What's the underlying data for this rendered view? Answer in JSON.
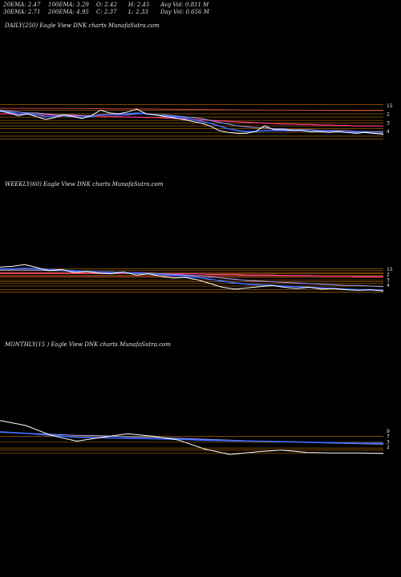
{
  "stats": [
    {
      "label": "20EMA:",
      "value": "2.47"
    },
    {
      "label": "100EMA:",
      "value": "3.29"
    },
    {
      "label": "O:",
      "value": "2.42"
    },
    {
      "label": "H:",
      "value": "2.45"
    },
    {
      "label": "Avg Vol:",
      "value": "0.811",
      "unit": "M"
    },
    {
      "label": "30EMA:",
      "value": "2.71"
    },
    {
      "label": "200EMA:",
      "value": "4.95"
    },
    {
      "label": "C:",
      "value": "2.37"
    },
    {
      "label": "L:",
      "value": "2.33"
    },
    {
      "label": "Day Vol:",
      "value": "0.656",
      "unit": "M"
    }
  ],
  "panels": {
    "daily": {
      "label": "DAILY(250) Eagle   View  DNK charts MunafaSutra.com"
    },
    "weekly": {
      "label": "WEEKLY(60) Eagle   View  DNK charts MunafaSutra.com"
    },
    "monthly": {
      "label": "MONTHLY(15                   ) Eagle   View  DNK charts MunafaSutra.com"
    }
  },
  "colors": {
    "background": "#000000",
    "price": "#ffffff",
    "ema_short": "#3b6cff",
    "ema_mid": "#a0a0ff",
    "ema_long": "#ff3b8a",
    "ema_longest": "#c04040",
    "levels": "#c07000"
  },
  "chart_data": [
    {
      "type": "line",
      "name": "daily",
      "ylim": [
        1.5,
        6.5
      ],
      "y_ticks": [
        "15",
        "2",
        "3",
        "4"
      ],
      "levels": [
        5.6,
        5.0,
        4.6,
        4.25,
        3.9,
        3.6,
        3.3,
        3.0,
        2.6,
        2.2,
        1.9
      ],
      "series": [
        {
          "role": "price",
          "values": [
            4.9,
            4.7,
            4.4,
            4.6,
            4.3,
            4.0,
            4.2,
            4.5,
            4.3,
            4.1,
            4.4,
            5.0,
            4.7,
            4.6,
            4.8,
            5.1,
            4.6,
            4.5,
            4.3,
            4.2,
            4.0,
            3.8,
            3.6,
            3.3,
            2.8,
            2.6,
            2.5,
            2.5,
            2.7,
            3.3,
            2.9,
            2.9,
            2.8,
            2.8,
            2.7,
            2.7,
            2.6,
            2.7,
            2.6,
            2.5,
            2.6,
            2.5,
            2.4
          ]
        },
        {
          "role": "ema_short",
          "values": [
            4.9,
            4.8,
            4.6,
            4.6,
            4.5,
            4.3,
            4.3,
            4.4,
            4.3,
            4.2,
            4.3,
            4.5,
            4.5,
            4.5,
            4.6,
            4.7,
            4.6,
            4.5,
            4.4,
            4.3,
            4.2,
            4.0,
            3.8,
            3.6,
            3.3,
            3.0,
            2.8,
            2.7,
            2.7,
            2.8,
            2.8,
            2.8,
            2.8,
            2.8,
            2.7,
            2.7,
            2.7,
            2.7,
            2.6,
            2.6,
            2.6,
            2.5,
            2.5
          ]
        },
        {
          "role": "ema_mid",
          "values": [
            5.0,
            4.9,
            4.8,
            4.7,
            4.7,
            4.6,
            4.5,
            4.5,
            4.5,
            4.4,
            4.4,
            4.5,
            4.5,
            4.5,
            4.5,
            4.6,
            4.6,
            4.5,
            4.5,
            4.4,
            4.3,
            4.2,
            4.1,
            3.9,
            3.7,
            3.5,
            3.3,
            3.2,
            3.1,
            3.1,
            3.0,
            3.0,
            2.9,
            2.9,
            2.9,
            2.8,
            2.8,
            2.8,
            2.8,
            2.7,
            2.7,
            2.7,
            2.7
          ]
        },
        {
          "role": "ema_long",
          "values": [
            4.6,
            4.6,
            4.55,
            4.55,
            4.5,
            4.5,
            4.45,
            4.45,
            4.4,
            4.4,
            4.35,
            4.35,
            4.3,
            4.3,
            4.25,
            4.25,
            4.2,
            4.2,
            4.15,
            4.1,
            4.05,
            4.0,
            3.95,
            3.9,
            3.85,
            3.8,
            3.75,
            3.7,
            3.65,
            3.6,
            3.55,
            3.5,
            3.5,
            3.45,
            3.45,
            3.4,
            3.4,
            3.35,
            3.35,
            3.3,
            3.3,
            3.3,
            3.29
          ]
        },
        {
          "role": "ema_longest",
          "values": [
            5.2,
            5.2,
            5.2,
            5.2,
            5.19,
            5.19,
            5.18,
            5.18,
            5.17,
            5.17,
            5.16,
            5.16,
            5.15,
            5.15,
            5.14,
            5.14,
            5.13,
            5.12,
            5.11,
            5.1,
            5.09,
            5.08,
            5.07,
            5.06,
            5.05,
            5.04,
            5.03,
            5.02,
            5.01,
            5.0,
            4.99,
            4.99,
            4.98,
            4.98,
            4.97,
            4.97,
            4.96,
            4.96,
            4.96,
            4.95,
            4.95,
            4.95,
            4.95
          ]
        }
      ]
    },
    {
      "type": "line",
      "name": "weekly",
      "ylim": [
        1.5,
        7.5
      ],
      "y_ticks": [
        "15",
        "2",
        "3",
        "4"
      ],
      "levels": [
        6.0,
        5.7,
        5.4,
        5.2,
        4.9,
        4.6,
        4.2,
        3.9,
        3.6,
        3.2,
        2.6,
        2.2
      ],
      "series": [
        {
          "role": "price",
          "values": [
            6.3,
            6.4,
            6.7,
            6.2,
            5.7,
            5.9,
            5.4,
            5.6,
            5.3,
            5.2,
            5.5,
            5.0,
            5.2,
            4.8,
            4.5,
            4.6,
            4.2,
            3.6,
            3.0,
            2.7,
            2.9,
            3.1,
            3.3,
            3.0,
            2.8,
            3.0,
            2.7,
            2.8,
            2.6,
            2.5,
            2.6,
            2.4
          ]
        },
        {
          "role": "ema_short",
          "values": [
            6.0,
            6.0,
            6.1,
            6.0,
            5.9,
            5.8,
            5.7,
            5.6,
            5.5,
            5.4,
            5.4,
            5.3,
            5.2,
            5.1,
            4.9,
            4.8,
            4.6,
            4.3,
            4.0,
            3.7,
            3.5,
            3.4,
            3.3,
            3.2,
            3.1,
            3.0,
            2.9,
            2.8,
            2.7,
            2.6,
            2.6,
            2.5
          ]
        },
        {
          "role": "ema_mid",
          "values": [
            5.8,
            5.8,
            5.8,
            5.8,
            5.7,
            5.7,
            5.6,
            5.6,
            5.5,
            5.5,
            5.4,
            5.4,
            5.3,
            5.2,
            5.1,
            5.0,
            4.9,
            4.7,
            4.5,
            4.3,
            4.1,
            4.0,
            3.9,
            3.8,
            3.7,
            3.6,
            3.5,
            3.4,
            3.3,
            3.3,
            3.2,
            3.1
          ]
        },
        {
          "role": "ema_long",
          "values": [
            5.3,
            5.3,
            5.3,
            5.3,
            5.3,
            5.3,
            5.3,
            5.3,
            5.3,
            5.3,
            5.3,
            5.3,
            5.2,
            5.2,
            5.2,
            5.2,
            5.2,
            5.1,
            5.1,
            5.1,
            5.0,
            5.0,
            5.0,
            4.9,
            4.9,
            4.9,
            4.8,
            4.8,
            4.8,
            4.7,
            4.7,
            4.7
          ]
        },
        {
          "role": "ema_longest",
          "values": [
            4.8,
            4.8,
            4.8,
            4.8,
            4.8,
            4.8,
            4.8,
            4.8,
            4.8,
            4.8,
            4.8,
            4.8,
            4.8,
            4.8,
            4.8,
            4.8,
            4.8,
            4.8,
            4.8,
            4.8,
            4.8,
            4.8,
            4.8,
            4.8,
            4.8,
            4.8,
            4.8,
            4.8,
            4.8,
            4.8,
            4.8,
            4.8
          ]
        }
      ]
    },
    {
      "type": "line",
      "name": "monthly",
      "ylim": [
        1.5,
        9.0
      ],
      "y_ticks": [
        "9",
        "7",
        "3",
        "2"
      ],
      "levels": [
        6.0,
        4.8,
        3.6,
        3.2,
        2.6
      ],
      "series": [
        {
          "role": "price",
          "values": [
            9.2,
            8.2,
            6.2,
            5.0,
            5.8,
            6.5,
            6.0,
            5.2,
            3.4,
            2.3,
            2.8,
            3.2,
            2.7,
            2.6,
            2.6,
            2.5
          ]
        },
        {
          "role": "ema_short",
          "values": [
            6.9,
            6.6,
            6.2,
            5.8,
            5.7,
            5.6,
            5.5,
            5.4,
            5.2,
            5.1,
            5.0,
            4.9,
            4.8,
            4.7,
            4.6,
            4.6
          ]
        },
        {
          "role": "ema_mid",
          "values": [
            6.8,
            6.6,
            6.4,
            6.2,
            6.1,
            5.9,
            5.8,
            5.6,
            5.4,
            5.2,
            5.0,
            4.9,
            4.8,
            4.6,
            4.5,
            4.4
          ]
        }
      ]
    }
  ]
}
